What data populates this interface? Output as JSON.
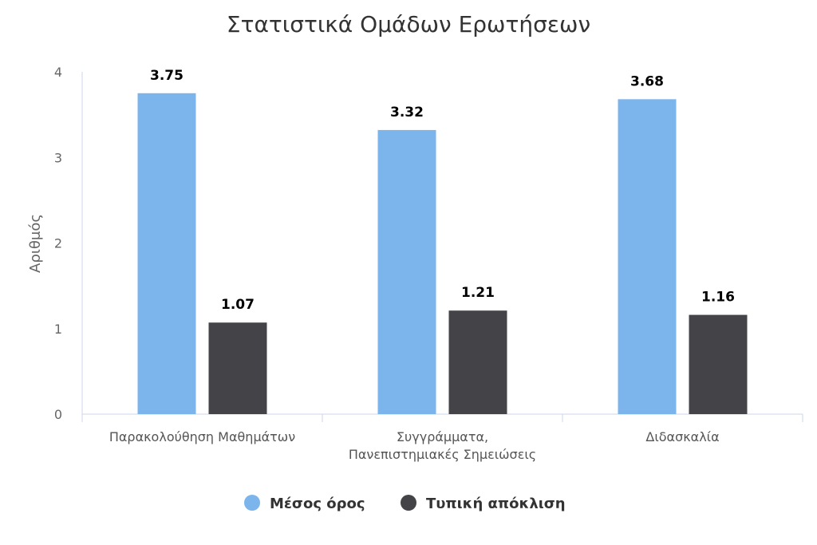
{
  "chart_data": {
    "type": "bar",
    "title": "Στατιστικά Ομάδων Ερωτήσεων",
    "ylabel": "Αριθμός",
    "xlabel": "",
    "ylim": [
      0,
      4
    ],
    "yticks": [
      0,
      1,
      2,
      3,
      4
    ],
    "categories": [
      [
        "Παρακολούθηση Μαθημάτων"
      ],
      [
        "Συγγράμματα,",
        "Πανεπιστημιακές Σημειώσεις"
      ],
      [
        "Διδασκαλία"
      ]
    ],
    "series": [
      {
        "name": "Μέσος όρος",
        "color": "#7cb5ec",
        "values": [
          3.75,
          3.32,
          3.68
        ],
        "labels": [
          "3.75",
          "3.32",
          "3.68"
        ]
      },
      {
        "name": "Τυπική απόκλιση",
        "color": "#434348",
        "values": [
          1.07,
          1.21,
          1.16
        ],
        "labels": [
          "1.07",
          "1.21",
          "1.16"
        ]
      }
    ],
    "grid": false,
    "legend_position": "bottom-center"
  }
}
